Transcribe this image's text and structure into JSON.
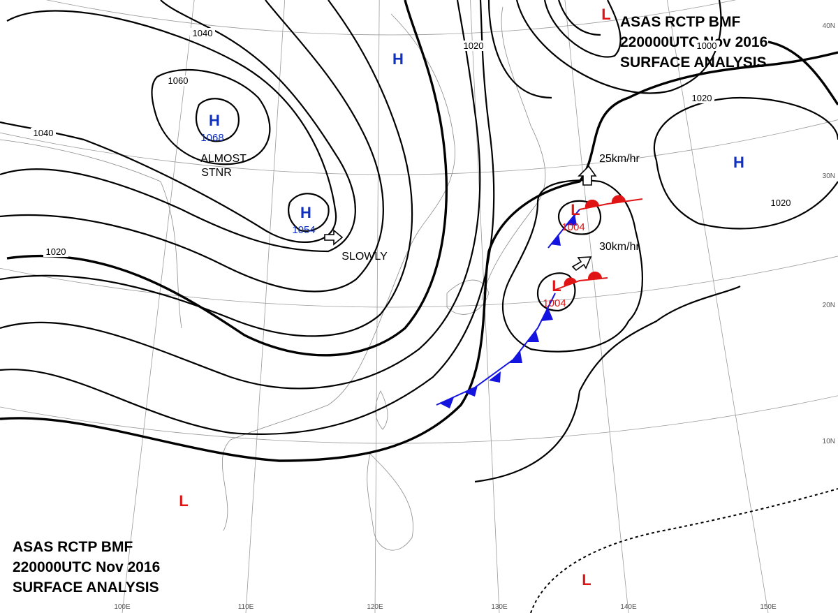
{
  "header_top": {
    "lines": [
      "ASAS   RCTP   BMF",
      "220000UTC   Nov   2016",
      "SURFACE  ANALYSIS"
    ]
  },
  "header_bottom": {
    "lines": [
      "ASAS   RCTP   BMF",
      "220000UTC   Nov   2016",
      "SURFACE  ANALYSIS"
    ]
  },
  "isobar_labels": [
    "1040",
    "1060",
    "1040",
    "1020",
    "1020",
    "1000",
    "1020",
    "1020"
  ],
  "pressure_centers": [
    {
      "symbol": "H",
      "pressure": "1068"
    },
    {
      "symbol": "H",
      "pressure": "1054"
    },
    {
      "symbol": "H"
    },
    {
      "symbol": "H"
    },
    {
      "symbol": "L",
      "pressure": "1004"
    },
    {
      "symbol": "L",
      "pressure": "1004"
    },
    {
      "symbol": "L"
    },
    {
      "symbol": "L"
    },
    {
      "symbol": "L"
    }
  ],
  "annotations": [
    "ALMOST",
    "STNR",
    "SLOWLY",
    "25km/hr",
    "30km/hr"
  ],
  "latitude_labels": [
    "40N",
    "30N",
    "20N",
    "10N"
  ],
  "longitude_labels": [
    "100E",
    "110E",
    "120E",
    "130E",
    "140E",
    "150E"
  ]
}
